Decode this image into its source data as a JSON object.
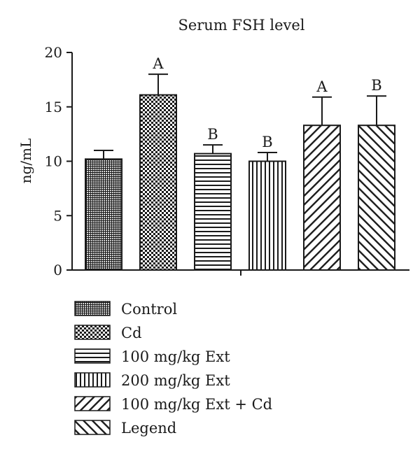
{
  "chart_data": {
    "type": "bar",
    "title": "Serum FSH level",
    "xlabel": "",
    "ylabel": "ng/mL",
    "ylim": [
      0,
      20
    ],
    "yticks": [
      0,
      5,
      10,
      15,
      20
    ],
    "categories": [
      "Control",
      "Cd",
      "100 mg/kg Ext",
      "200 mg/kg Ext",
      "100 mg/kg Ext + Cd",
      "Legend"
    ],
    "values": [
      10.2,
      16.1,
      10.7,
      10.0,
      13.3,
      13.3
    ],
    "errors": [
      0.8,
      1.9,
      0.8,
      0.8,
      2.6,
      2.7
    ],
    "significance_labels": [
      "",
      "A",
      "B",
      "B",
      "A",
      "B"
    ],
    "patterns": [
      "fine-crosshatch",
      "checkerboard",
      "horizontal-lines",
      "vertical-lines",
      "diagonal-forward",
      "diagonal-backward"
    ],
    "bar_color": "#1a1a1a",
    "grid": false,
    "legend_position": "bottom"
  }
}
